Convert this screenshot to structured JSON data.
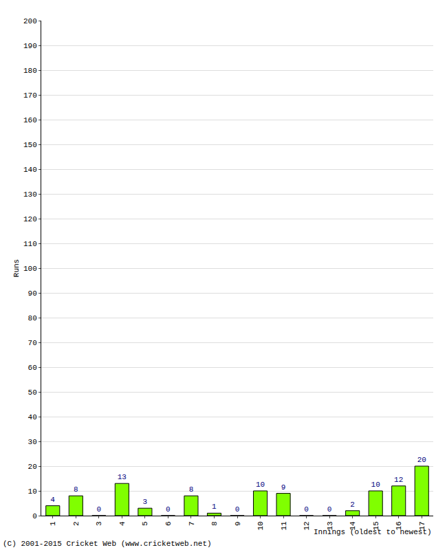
{
  "chart_data": {
    "type": "bar",
    "ylabel": "Runs",
    "xlabel": "Innings (oldest to newest)",
    "annotations": [
      "(C) 2001-2015 Cricket Web (www.cricketweb.net)"
    ],
    "categories": [
      "1",
      "2",
      "3",
      "4",
      "5",
      "6",
      "7",
      "8",
      "9",
      "10",
      "11",
      "12",
      "13",
      "14",
      "15",
      "16",
      "17"
    ],
    "values": [
      4,
      8,
      0,
      13,
      3,
      0,
      8,
      1,
      0,
      10,
      9,
      0,
      0,
      2,
      10,
      12,
      20
    ],
    "color": "#80ff00",
    "ylim": [
      0,
      200
    ],
    "yticks": [
      0,
      10,
      20,
      30,
      40,
      50,
      60,
      70,
      80,
      90,
      100,
      110,
      120,
      130,
      140,
      150,
      160,
      170,
      180,
      190,
      200
    ],
    "grid": true,
    "data_labels": true
  }
}
